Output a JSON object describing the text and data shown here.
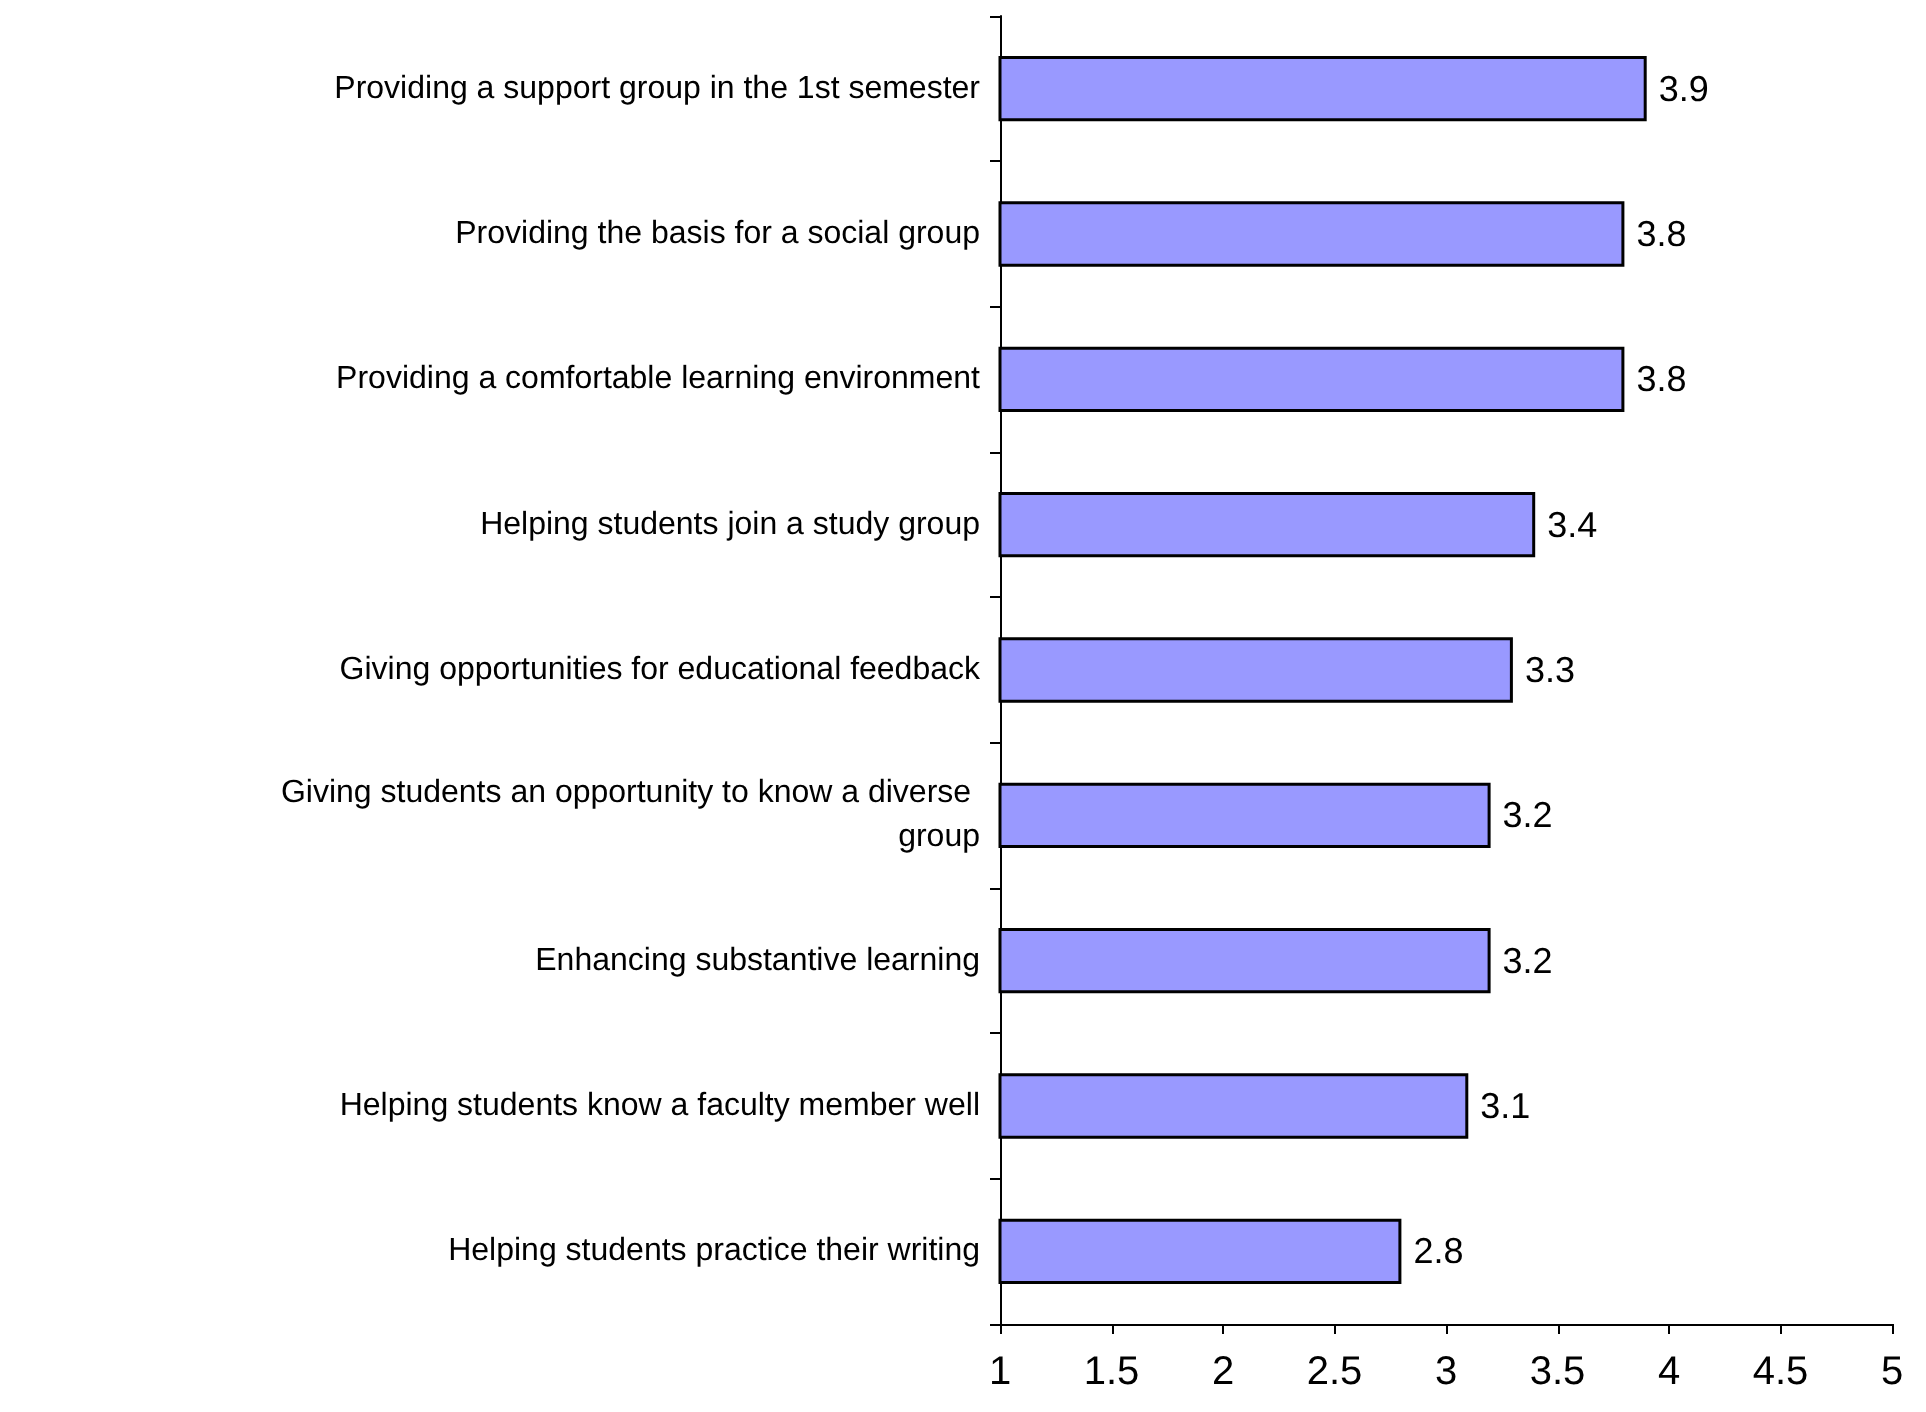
{
  "chart_data": {
    "type": "bar",
    "orientation": "horizontal",
    "categories": [
      "Providing a support group in the 1st semester",
      "Providing the basis for a social group",
      "Providing a comfortable learning environment",
      "Helping students join a study group",
      "Giving opportunities for educational feedback",
      "Giving students an opportunity to know a diverse group",
      "Enhancing substantive learning",
      "Helping students know a faculty member well",
      "Helping students practice their writing"
    ],
    "values": [
      3.9,
      3.8,
      3.8,
      3.4,
      3.3,
      3.2,
      3.2,
      3.1,
      2.8
    ],
    "color": "#9999ff",
    "data_labels": true,
    "xlim": [
      1,
      5
    ],
    "xticks": [
      1,
      1.5,
      2,
      2.5,
      3,
      3.5,
      4,
      4.5,
      5
    ],
    "grid": false
  }
}
